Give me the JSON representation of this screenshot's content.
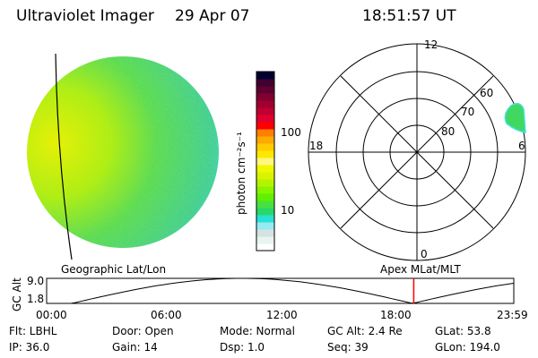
{
  "header": {
    "title": "Ultraviolet Imager",
    "date": "29 Apr 07",
    "time": "18:51:57 UT"
  },
  "colorbar": {
    "label": "photon cm⁻²s⁻¹",
    "ticks": [
      "100",
      "10"
    ],
    "colors": [
      "#ffffff",
      "#e8f4ee",
      "#d4e2e2",
      "#96eaf2",
      "#28e0d6",
      "#28d868",
      "#48e040",
      "#60f000",
      "#88f400",
      "#b4f400",
      "#d8f400",
      "#f0f800",
      "#fff880",
      "#ffe800",
      "#ffcc00",
      "#ffaa00",
      "#ff8000",
      "#ff0000",
      "#e00030",
      "#c00030",
      "#a00030",
      "#800030",
      "#600030",
      "#400030",
      "#000030"
    ]
  },
  "polar": {
    "labels": {
      "top": "12",
      "left": "18",
      "right": "6",
      "bottom": "0"
    },
    "lat_labels": [
      "80",
      "70",
      "60"
    ]
  },
  "altplot": {
    "left_title": "Geographic Lat/Lon",
    "right_title": "Apex MLat/MLT",
    "ylabel": "GC Alt",
    "yticks": [
      "9.0",
      "1.8"
    ],
    "xticks": [
      "00:00",
      "06:00",
      "12:00",
      "18:00",
      "23:59"
    ],
    "current_hour": 18.86,
    "line_color": "#ff0000"
  },
  "info": [
    [
      "Flt: LBHL",
      "Door: Open",
      "Mode: Normal",
      "GC Alt: 2.4 Re",
      "GLat:  53.8"
    ],
    [
      "IP: 36.0",
      "Gain: 14",
      "Dsp:     1.0",
      "Seq: 39",
      "GLon: 194.0"
    ]
  ]
}
